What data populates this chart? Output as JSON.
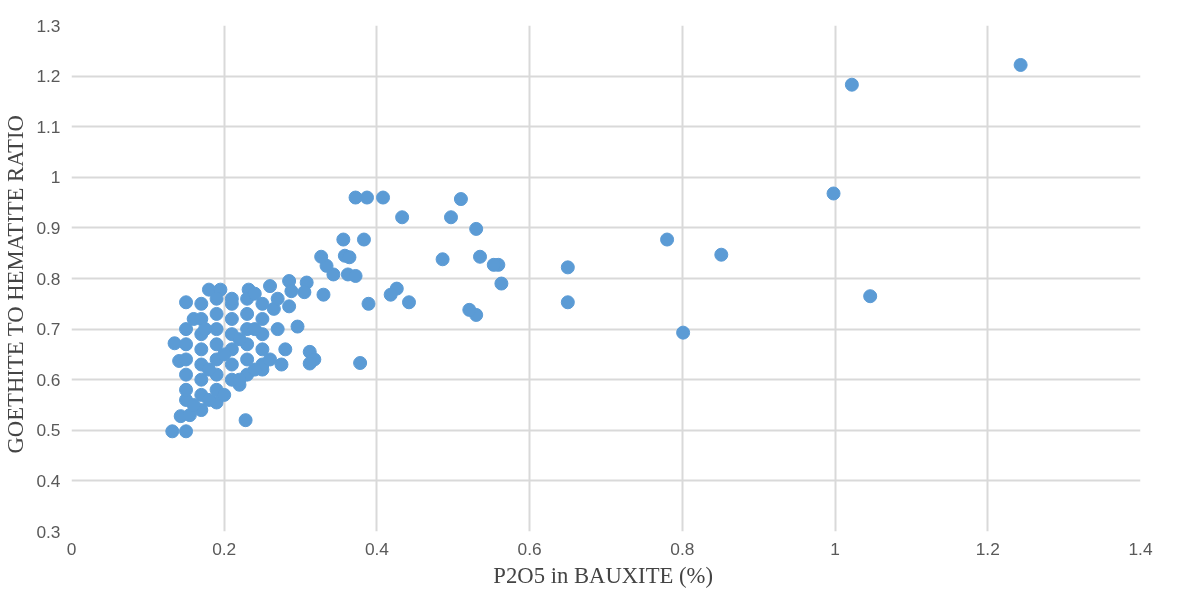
{
  "chart_data": {
    "type": "scatter",
    "xlabel": "P2O5 in BAUXITE  (%)",
    "ylabel": "GOETHITE  TO HEMATITE  RATIO",
    "xlim": [
      0,
      1.4
    ],
    "xticks": [
      0,
      0.2,
      0.4,
      0.6,
      0.8,
      1,
      1.2,
      1.4
    ],
    "ylim": [
      0.3,
      1.3
    ],
    "yticks": [
      0.3,
      0.4,
      0.5,
      0.6,
      0.7,
      0.8,
      0.9,
      1,
      1.1,
      1.2,
      1.3
    ],
    "grid": true,
    "marker": "circle",
    "series": [
      {
        "color": "#5b9bd5",
        "x": [
          1.243,
          1.022,
          0.998,
          1.046,
          0.851,
          0.801,
          0.78,
          0.65,
          0.65,
          0.563,
          0.559,
          0.553,
          0.535,
          0.53,
          0.51,
          0.497,
          0.53,
          0.521,
          0.486,
          0.442,
          0.433,
          0.426,
          0.418,
          0.408,
          0.387,
          0.372,
          0.383,
          0.389,
          0.378,
          0.356,
          0.358,
          0.364,
          0.362,
          0.372,
          0.343,
          0.334,
          0.327,
          0.33,
          0.308,
          0.305,
          0.285,
          0.288,
          0.285,
          0.296,
          0.312,
          0.318,
          0.312,
          0.275,
          0.228,
          0.132,
          0.15,
          0.135,
          0.141,
          0.143,
          0.15,
          0.15,
          0.155,
          0.18,
          0.195,
          0.232,
          0.26,
          0.265,
          0.27,
          0.25,
          0.22,
          0.19,
          0.17,
          0.16,
          0.15,
          0.15,
          0.15,
          0.15,
          0.15,
          0.17,
          0.17,
          0.17,
          0.17,
          0.17,
          0.17,
          0.17,
          0.19,
          0.19,
          0.19,
          0.19,
          0.19,
          0.19,
          0.19,
          0.21,
          0.21,
          0.21,
          0.21,
          0.21,
          0.21,
          0.23,
          0.23,
          0.23,
          0.23,
          0.23,
          0.23,
          0.25,
          0.25,
          0.25,
          0.25,
          0.25,
          0.16,
          0.18,
          0.2,
          0.22,
          0.24,
          0.26,
          0.28,
          0.27,
          0.24,
          0.21,
          0.175,
          0.22,
          0.2,
          0.24,
          0.18
        ],
        "values": [
          1.222,
          1.183,
          0.968,
          0.765,
          0.847,
          0.693,
          0.877,
          0.822,
          0.753,
          0.79,
          0.827,
          0.827,
          0.843,
          0.898,
          0.957,
          0.921,
          0.728,
          0.738,
          0.838,
          0.753,
          0.921,
          0.78,
          0.768,
          0.96,
          0.96,
          0.96,
          0.877,
          0.75,
          0.633,
          0.877,
          0.845,
          0.842,
          0.808,
          0.805,
          0.808,
          0.825,
          0.843,
          0.768,
          0.792,
          0.773,
          0.795,
          0.775,
          0.745,
          0.705,
          0.655,
          0.64,
          0.632,
          0.63,
          0.52,
          0.498,
          0.498,
          0.672,
          0.637,
          0.528,
          0.753,
          0.56,
          0.53,
          0.778,
          0.778,
          0.778,
          0.785,
          0.74,
          0.7,
          0.62,
          0.59,
          0.555,
          0.54,
          0.72,
          0.58,
          0.61,
          0.64,
          0.67,
          0.7,
          0.57,
          0.6,
          0.63,
          0.66,
          0.69,
          0.72,
          0.75,
          0.58,
          0.61,
          0.64,
          0.67,
          0.7,
          0.73,
          0.76,
          0.6,
          0.63,
          0.66,
          0.69,
          0.72,
          0.75,
          0.61,
          0.64,
          0.67,
          0.7,
          0.73,
          0.76,
          0.63,
          0.66,
          0.69,
          0.72,
          0.75,
          0.55,
          0.56,
          0.57,
          0.6,
          0.62,
          0.64,
          0.66,
          0.76,
          0.77,
          0.76,
          0.7,
          0.68,
          0.65,
          0.7,
          0.62
        ]
      }
    ]
  }
}
